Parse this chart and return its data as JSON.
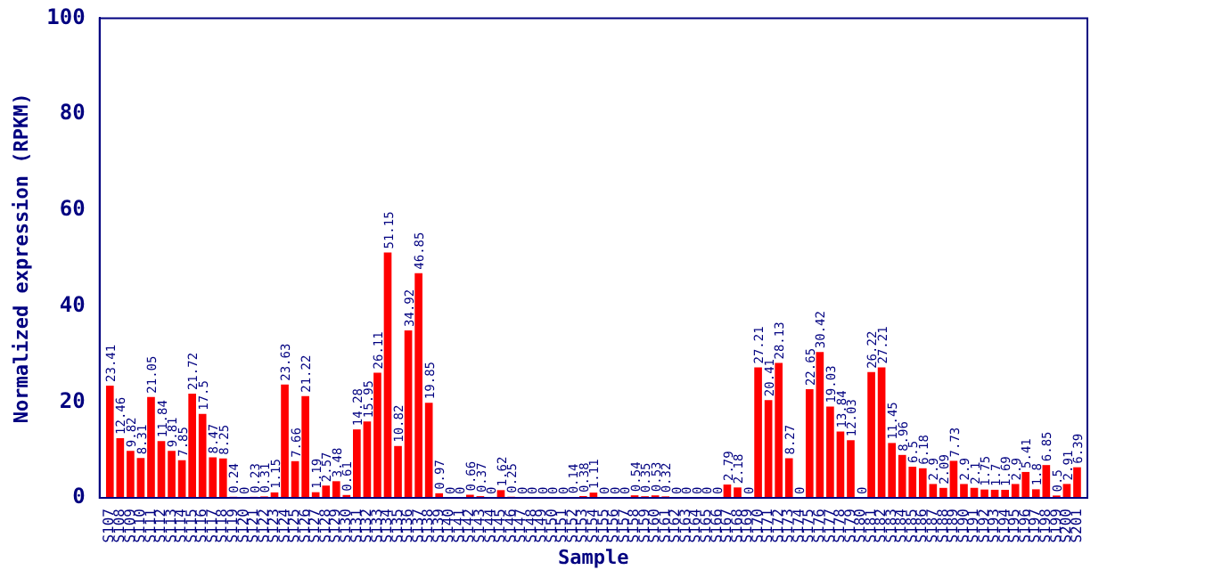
{
  "chart_data": {
    "type": "bar",
    "xlabel": "Sample",
    "ylabel": "Normalized expression (RPKM)",
    "categories": [
      "S107",
      "S108",
      "S109",
      "S110",
      "S111",
      "S112",
      "S113",
      "S114",
      "S115",
      "S116",
      "S117",
      "S118",
      "S119",
      "S120",
      "S121",
      "S122",
      "S123",
      "S124",
      "S125",
      "S126",
      "S127",
      "S128",
      "S129",
      "S130",
      "S131",
      "S132",
      "S133",
      "S134",
      "S135",
      "S136",
      "S137",
      "S138",
      "S139",
      "S140",
      "S141",
      "S142",
      "S143",
      "S144",
      "S145",
      "S146",
      "S147",
      "S148",
      "S149",
      "S150",
      "S151",
      "S152",
      "S153",
      "S154",
      "S155",
      "S156",
      "S157",
      "S158",
      "S159",
      "S160",
      "S161",
      "S162",
      "S163",
      "S164",
      "S165",
      "S166",
      "S167",
      "S168",
      "S169",
      "S170",
      "S171",
      "S172",
      "S173",
      "S174",
      "S175",
      "S176",
      "S177",
      "S178",
      "S179",
      "S180",
      "S181",
      "S182",
      "S183",
      "S184",
      "S185",
      "S186",
      "S187",
      "S188",
      "S189",
      "S190",
      "S191",
      "S192",
      "S193",
      "S194",
      "S195",
      "S196",
      "S197",
      "S198",
      "S199",
      "S200",
      "S201"
    ],
    "values": [
      23.41,
      12.46,
      9.82,
      8.31,
      21.05,
      11.84,
      9.81,
      7.85,
      21.72,
      17.5,
      8.47,
      8.25,
      0.24,
      0,
      0.23,
      0.31,
      1.15,
      23.63,
      7.66,
      21.22,
      1.19,
      2.57,
      3.48,
      0.61,
      14.28,
      15.95,
      26.11,
      51.15,
      10.82,
      34.92,
      46.85,
      19.85,
      0.97,
      0,
      0,
      0.66,
      0.37,
      0,
      1.62,
      0.25,
      0,
      0,
      0,
      0,
      0,
      0.14,
      0.38,
      1.11,
      0,
      0,
      0,
      0.54,
      0.35,
      0.53,
      0.32,
      0,
      0,
      0,
      0,
      0,
      2.79,
      2.18,
      0,
      27.21,
      20.41,
      28.13,
      8.27,
      0,
      22.65,
      30.42,
      19.03,
      13.84,
      12.03,
      0,
      26.22,
      27.21,
      11.45,
      8.96,
      6.5,
      6.18,
      2.9,
      2.09,
      7.73,
      2.9,
      2.1,
      1.75,
      1.7,
      1.69,
      2.9,
      5.41,
      1.8,
      6.85,
      0.5,
      2.91,
      6.39
    ],
    "color": "#ff0000",
    "ylim": [
      0,
      100
    ],
    "yticks": [
      0,
      20,
      40,
      60,
      80,
      100
    ],
    "data_labels": true,
    "grid": false,
    "legend": false
  }
}
